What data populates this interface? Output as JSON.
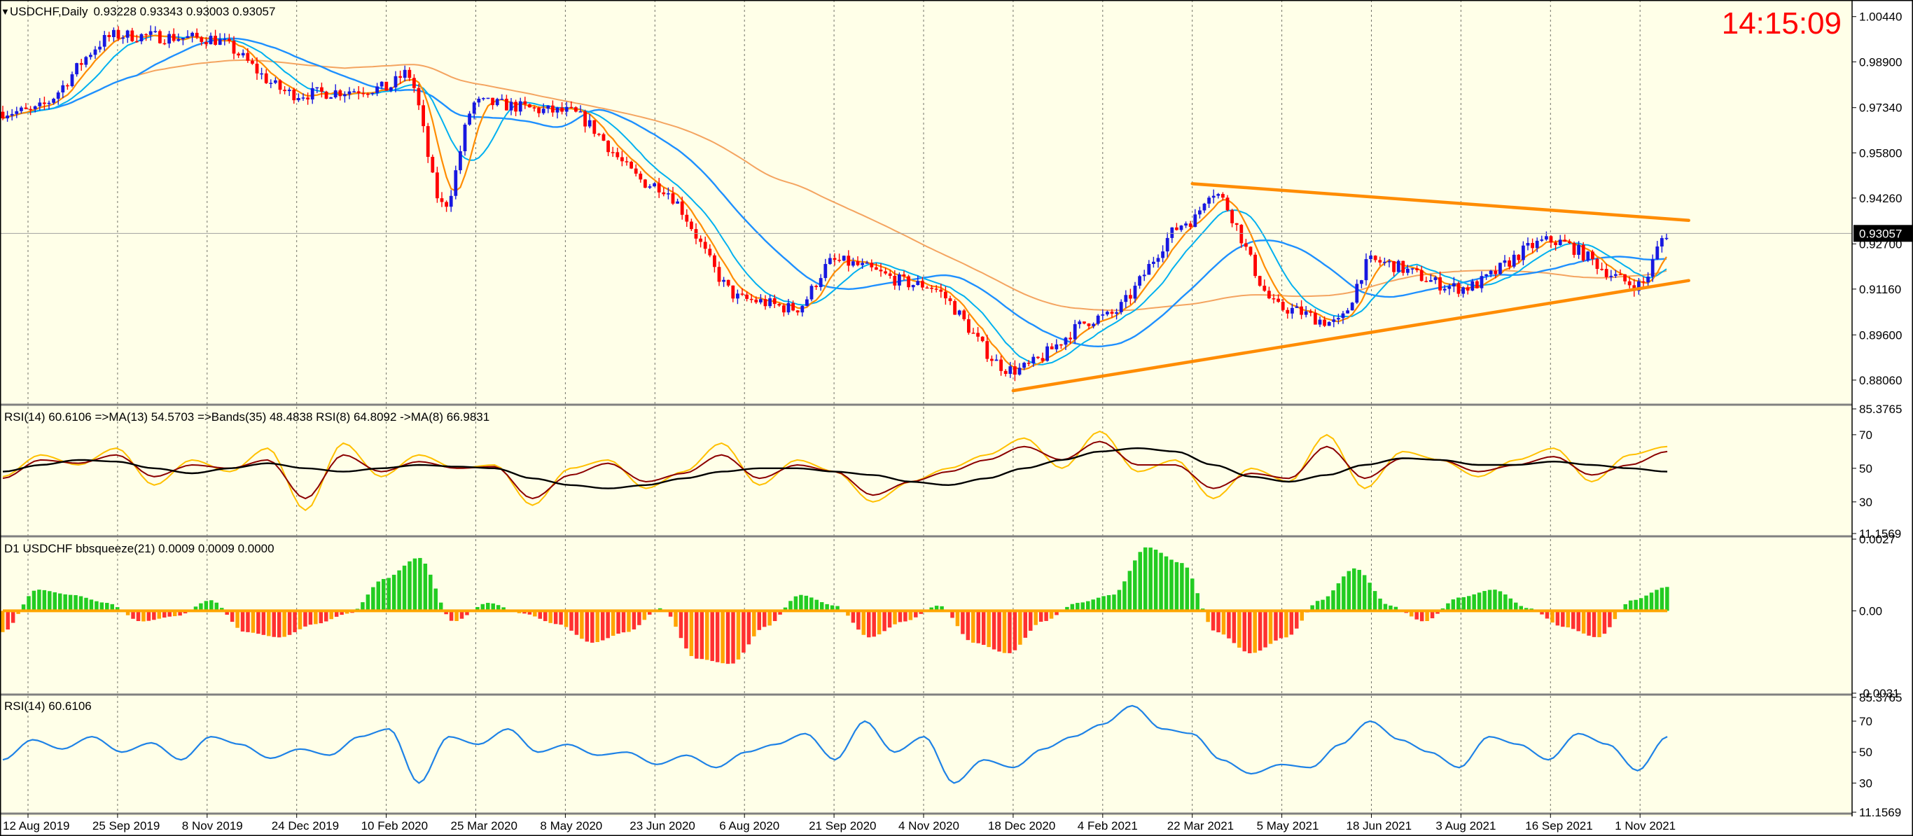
{
  "header": {
    "symbol_line": "USDCHF,Daily",
    "ohlc": "0.93228 0.93343 0.93003 0.93057",
    "clock": "14:15:09",
    "clock_color": "#ff0000"
  },
  "colors": {
    "background": "#ffffe8",
    "bull_candle": "#1818e0",
    "bear_candle": "#ff0000",
    "ma_fast": "#ff8c00",
    "ma_mid": "#00b0f0",
    "ma_slow": "#1e90ff",
    "ma_long": "#f4a460",
    "trendline": "#ff8c00",
    "rsi_main": "#ffc000",
    "rsi_signal": "#8b0000",
    "rsi_bands": "#000000",
    "rsi_simple": "#1e82e6",
    "squeeze_up": "#22cc22",
    "squeeze_down": "#ff3030",
    "squeeze_orange": "#ffa500"
  },
  "chart_data": [
    {
      "type": "candlestick",
      "panel": "price",
      "y_ticks": [
        "1.00440",
        "0.98900",
        "0.97340",
        "0.95800",
        "0.94260",
        "0.92700",
        "0.91160",
        "0.89600",
        "0.88060"
      ],
      "ylim": [
        0.8727,
        1.0091
      ],
      "current_price": "0.93057",
      "current_price_value": 0.93057,
      "x_labels": [
        "12 Aug 2019",
        "25 Sep 2019",
        "8 Nov 2019",
        "24 Dec 2019",
        "10 Feb 2020",
        "25 Mar 2020",
        "8 May 2020",
        "23 Jun 2020",
        "6 Aug 2020",
        "21 Sep 2020",
        "4 Nov 2020",
        "18 Dec 2020",
        "4 Feb 2021",
        "22 Mar 2021",
        "5 May 2021",
        "18 Jun 2021",
        "3 Aug 2021",
        "16 Sep 2021",
        "1 Nov 2021"
      ],
      "approx_closes": [
        {
          "date": "12 Aug 2019",
          "close": 0.972
        },
        {
          "date": "25 Sep 2019",
          "close": 0.998
        },
        {
          "date": "8 Nov 2019",
          "close": 0.997
        },
        {
          "date": "24 Dec 2019",
          "close": 0.978
        },
        {
          "date": "10 Feb 2020",
          "close": 0.98
        },
        {
          "date": "20 Feb 2020",
          "close": 0.985
        },
        {
          "date": "9 Mar 2020",
          "close": 0.94
        },
        {
          "date": "25 Mar 2020",
          "close": 0.975
        },
        {
          "date": "8 May 2020",
          "close": 0.972
        },
        {
          "date": "23 Jun 2020",
          "close": 0.947
        },
        {
          "date": "6 Aug 2020",
          "close": 0.908
        },
        {
          "date": "1 Sep 2020",
          "close": 0.905
        },
        {
          "date": "21 Sep 2020",
          "close": 0.921
        },
        {
          "date": "4 Nov 2020",
          "close": 0.913
        },
        {
          "date": "18 Dec 2020",
          "close": 0.884
        },
        {
          "date": "4 Feb 2021",
          "close": 0.902
        },
        {
          "date": "22 Mar 2021",
          "close": 0.935
        },
        {
          "date": "31 Mar 2021",
          "close": 0.945
        },
        {
          "date": "5 May 2021",
          "close": 0.905
        },
        {
          "date": "1 Jun 2021",
          "close": 0.9
        },
        {
          "date": "18 Jun 2021",
          "close": 0.921
        },
        {
          "date": "3 Aug 2021",
          "close": 0.912
        },
        {
          "date": "16 Sep 2021",
          "close": 0.928
        },
        {
          "date": "1 Nov 2021",
          "close": 0.913
        },
        {
          "date": "15 Nov 2021",
          "close": 0.9306
        }
      ],
      "trendlines": [
        {
          "name": "upper",
          "from": {
            "date": "22 Mar 2021",
            "price": 0.9475
          },
          "to": {
            "date": "late Nov 2021",
            "price": 0.935
          }
        },
        {
          "name": "lower",
          "from": {
            "date": "18 Dec 2020",
            "price": 0.877
          },
          "to": {
            "date": "late Nov 2021",
            "price": 0.9145
          }
        }
      ]
    },
    {
      "type": "line",
      "panel": "rsi_bands",
      "label": "RSI(14) 60.6106  =>MA(13) 54.5703  =>Bands(35) 48.4838  RSI(8) 64.8092  ->MA(8) 66.9831",
      "y_ticks": [
        "85.3765",
        "70",
        "50",
        "30",
        "11.1569"
      ],
      "ylim": [
        11.1569,
        85.3765
      ],
      "series": [
        {
          "name": "RSI(8)",
          "values": [
            45,
            58,
            52,
            62,
            40,
            55,
            48,
            62,
            25,
            65,
            45,
            58,
            50,
            52,
            28,
            50,
            55,
            38,
            48,
            65,
            40,
            55,
            48,
            30,
            42,
            50,
            58,
            68,
            50,
            72,
            48,
            55,
            32,
            50,
            42,
            70,
            38,
            60,
            55,
            45,
            55,
            62,
            42,
            58,
            63
          ]
        },
        {
          "name": "MA(8)",
          "values": [
            44,
            55,
            53,
            58,
            45,
            52,
            50,
            55,
            32,
            58,
            48,
            54,
            50,
            51,
            32,
            46,
            53,
            42,
            47,
            58,
            44,
            52,
            48,
            34,
            42,
            48,
            55,
            63,
            55,
            66,
            52,
            52,
            38,
            47,
            44,
            63,
            44,
            56,
            55,
            48,
            52,
            57,
            46,
            52,
            60
          ]
        },
        {
          "name": "Bands(35)",
          "values": [
            48,
            52,
            55,
            54,
            50,
            47,
            50,
            53,
            50,
            48,
            50,
            52,
            51,
            50,
            44,
            40,
            38,
            40,
            44,
            48,
            50,
            50,
            48,
            46,
            42,
            40,
            44,
            50,
            55,
            60,
            62,
            60,
            52,
            45,
            42,
            46,
            52,
            56,
            55,
            52,
            52,
            54,
            52,
            50,
            48
          ]
        }
      ]
    },
    {
      "type": "histogram",
      "panel": "bbsqueeze",
      "label": "D1 USDCHF bbsqueeze(21) 0.0009 0.0009 0.0000",
      "y_ticks": [
        "0.0027",
        "0.00",
        "-0.0031"
      ],
      "ylim": [
        -0.0031,
        0.0027
      ],
      "values": [
        -0.0008,
        0.0008,
        0.0006,
        0.0003,
        -0.0004,
        -0.0002,
        0.0004,
        -0.0008,
        -0.001,
        -0.0005,
        -0.0001,
        0.0012,
        0.002,
        -0.0004,
        0.0003,
        -0.0001,
        -0.0005,
        -0.0012,
        -0.0008,
        0.0001,
        -0.0018,
        -0.002,
        -0.0006,
        0.0006,
        0.0002,
        -0.001,
        -0.0004,
        0.0002,
        -0.0012,
        -0.0016,
        -0.0004,
        0.0003,
        0.0006,
        0.0024,
        0.0018,
        -0.0008,
        -0.0016,
        -0.001,
        0.0004,
        0.0016,
        0.0002,
        -0.0004,
        0.0005,
        0.0008,
        0.0001,
        -0.0006,
        -0.001,
        0.0004,
        0.0009
      ]
    },
    {
      "type": "line",
      "panel": "rsi",
      "label": "RSI(14) 60.6106",
      "y_ticks": [
        "85.3765",
        "70",
        "50",
        "30",
        "11.1569"
      ],
      "ylim": [
        11.1569,
        85.3765
      ],
      "values": [
        45,
        58,
        52,
        60,
        50,
        56,
        45,
        60,
        55,
        46,
        52,
        48,
        60,
        65,
        30,
        60,
        55,
        65,
        50,
        55,
        48,
        50,
        42,
        48,
        40,
        50,
        55,
        62,
        45,
        70,
        50,
        60,
        30,
        45,
        40,
        52,
        60,
        68,
        80,
        65,
        62,
        45,
        36,
        42,
        40,
        55,
        70,
        58,
        50,
        40,
        60,
        55,
        45,
        62,
        55,
        38,
        60
      ]
    }
  ]
}
